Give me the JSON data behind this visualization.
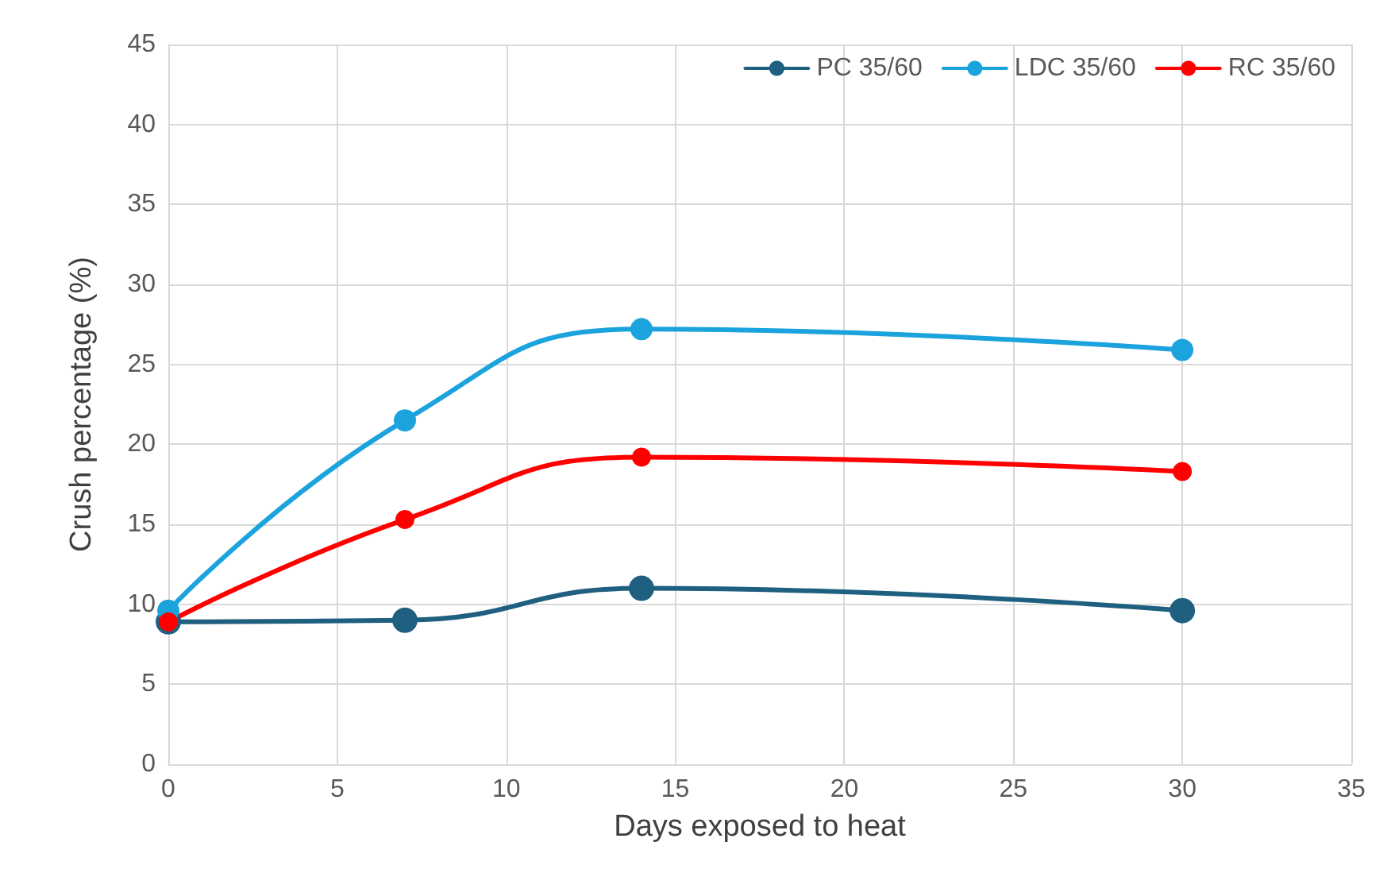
{
  "chart_data": {
    "type": "line",
    "xlabel": "Days exposed to heat",
    "ylabel": "Crush percentage (%)",
    "x": [
      0,
      7,
      14,
      30
    ],
    "series": [
      {
        "name": "PC 35/60",
        "color": "#1f5f80",
        "values": [
          8.9,
          9.0,
          11.0,
          9.6
        ]
      },
      {
        "name": "LDC 35/60",
        "color": "#1ba3dd",
        "values": [
          9.6,
          21.5,
          27.2,
          25.9
        ]
      },
      {
        "name": "RC 35/60",
        "color": "#ff0000",
        "values": [
          8.9,
          15.3,
          19.2,
          18.3
        ]
      }
    ],
    "xlim": [
      0,
      35
    ],
    "xticks": [
      0,
      5,
      10,
      15,
      20,
      25,
      30,
      35
    ],
    "ylim": [
      0,
      45
    ],
    "yticks": [
      0,
      5,
      10,
      15,
      20,
      25,
      30,
      35,
      40,
      45
    ],
    "grid": true,
    "legend": "top right",
    "marker": "circle",
    "line_style": "solid"
  }
}
